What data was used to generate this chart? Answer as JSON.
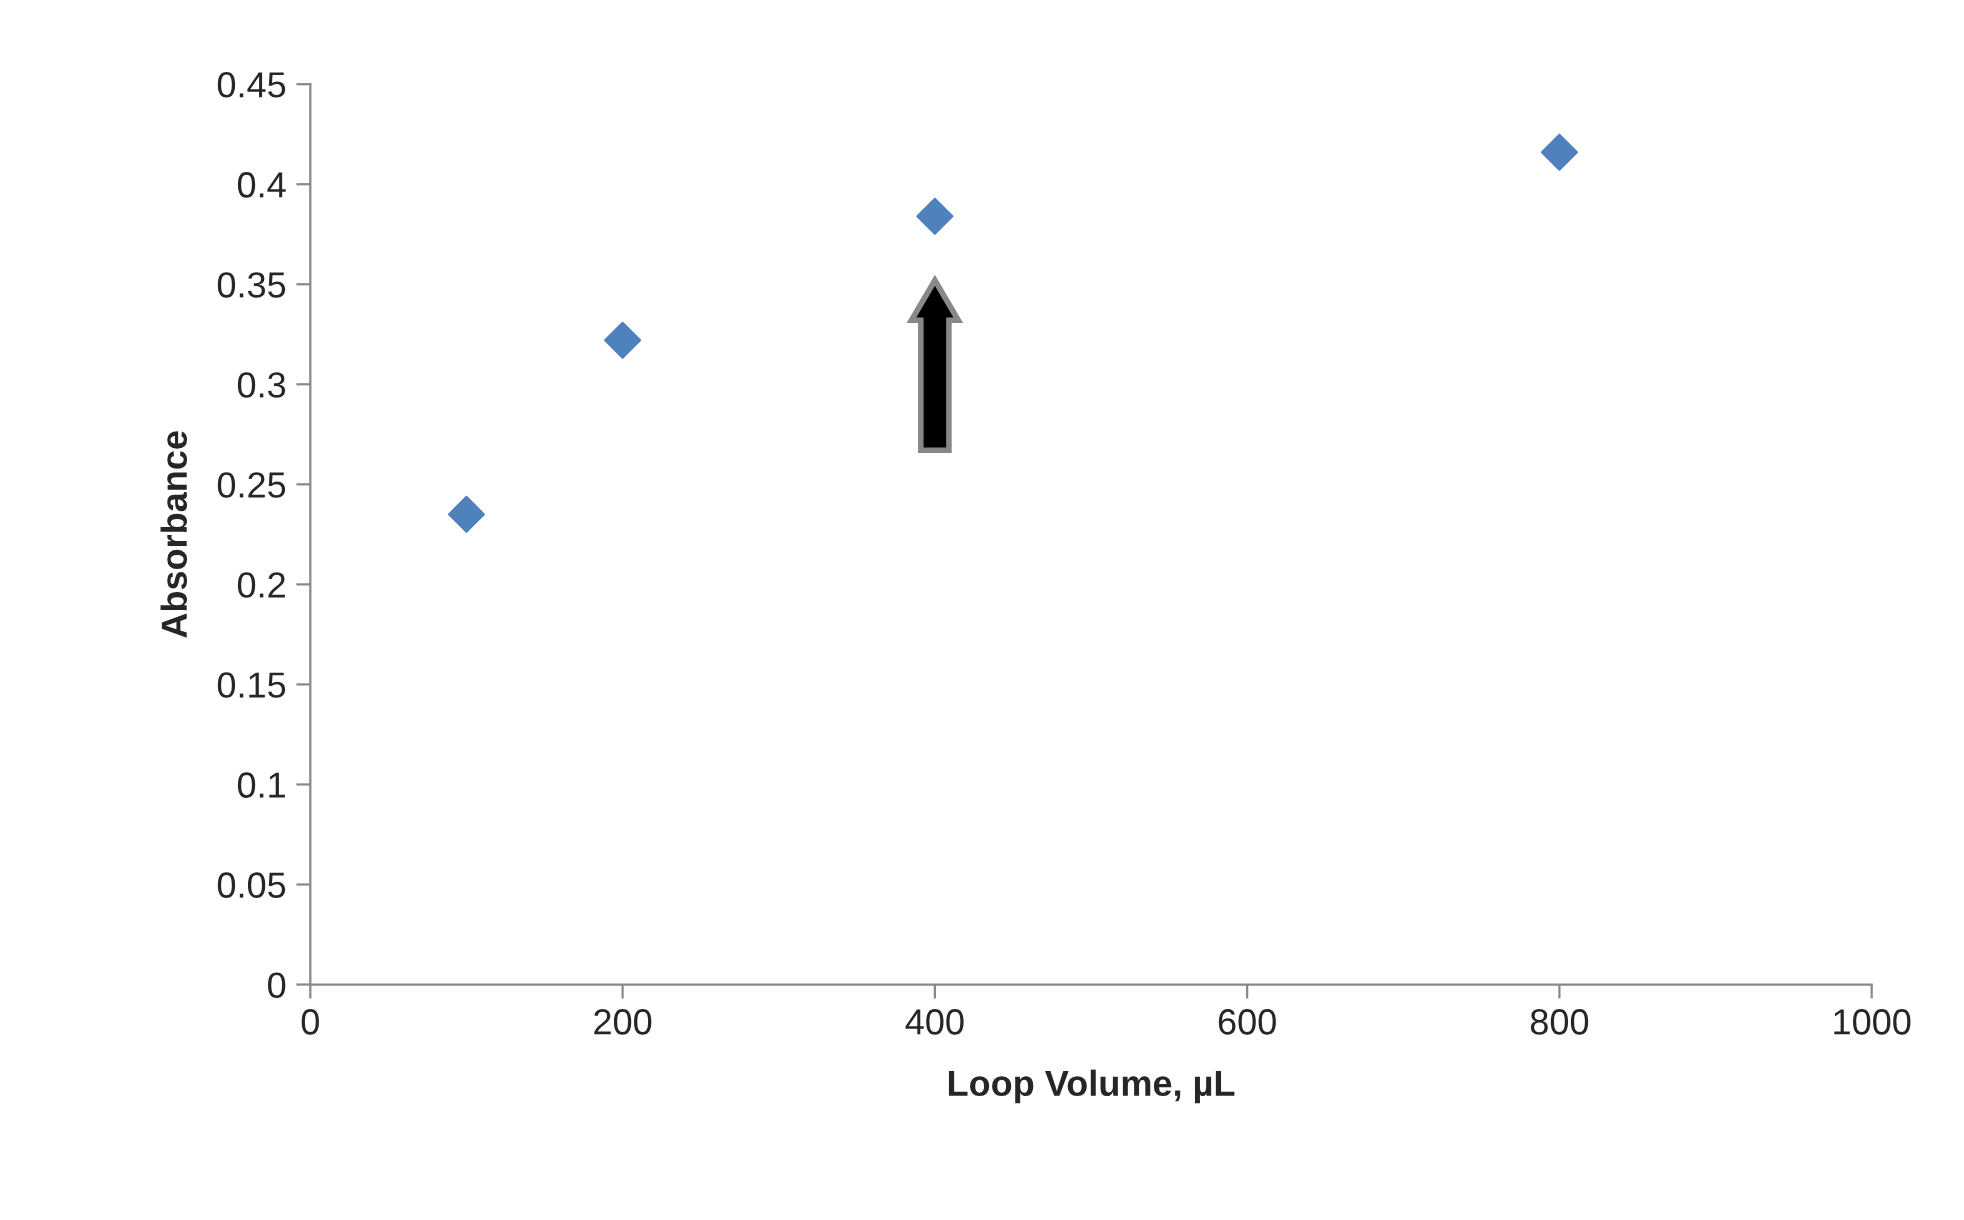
{
  "chart_data": {
    "type": "scatter",
    "xlabel": "Loop Volume, µL",
    "ylabel": "Absorbance",
    "x": [
      100,
      200,
      400,
      800
    ],
    "series": [
      {
        "color": "#4f81bd",
        "values": [
          0.235,
          0.322,
          0.384,
          0.416
        ]
      }
    ],
    "xlim": [
      0,
      1000
    ],
    "xticks": [
      0,
      200,
      400,
      600,
      800,
      1000
    ],
    "ylim": [
      0,
      0.45
    ],
    "yticks": [
      0,
      0.05,
      0.1,
      0.15,
      0.2,
      0.25,
      0.3,
      0.35,
      0.4,
      0.45
    ],
    "marker": "diamond",
    "grid": false,
    "legend": false
  }
}
